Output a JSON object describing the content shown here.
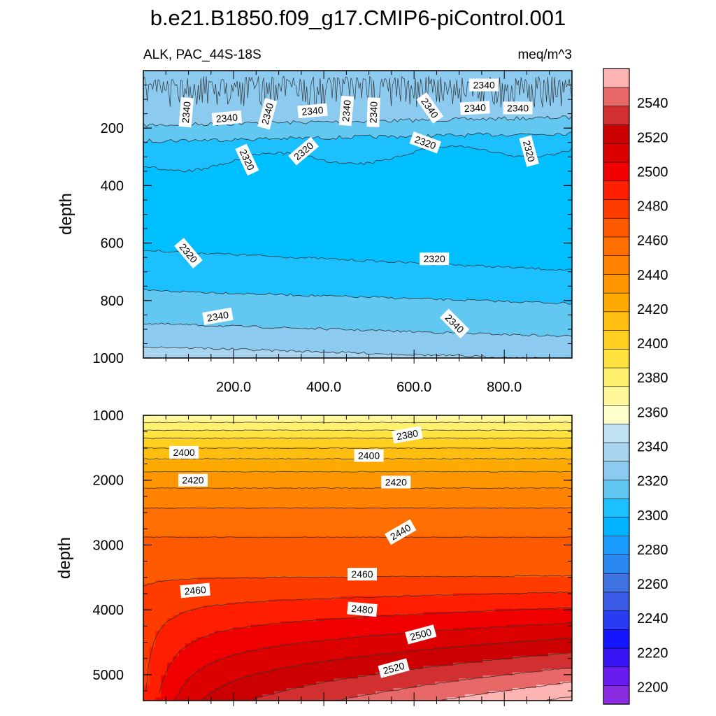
{
  "chart_data": {
    "type": "contour",
    "title": "b.e21.B1850.f09_g17.CMIP6-piControl.001",
    "variable_label": "ALK, PAC_44S-18S",
    "units_label": "meq/m^3",
    "ylabel": "depth",
    "xlim": [
      0,
      950
    ],
    "x_tick_labels": [
      "200.0",
      "400.0",
      "600.0",
      "800.0"
    ],
    "x_tick_values": [
      200,
      400,
      600,
      800
    ],
    "colorbar": {
      "min": 2190,
      "max": 2560,
      "interval": 10,
      "tick_labels": [
        "2200",
        "2220",
        "2240",
        "2260",
        "2280",
        "2300",
        "2320",
        "2340",
        "2360",
        "2380",
        "2400",
        "2420",
        "2440",
        "2460",
        "2480",
        "2500",
        "2520",
        "2540"
      ],
      "colors": [
        "#8a2be2",
        "#6a1bf0",
        "#3a14f5",
        "#1515ff",
        "#2a3cf2",
        "#3a5ae8",
        "#3f73e2",
        "#2a88f0",
        "#1a9cff",
        "#00b4ff",
        "#1cc0ff",
        "#62c8f2",
        "#8ccaf0",
        "#a8d4f0",
        "#c0e2f2",
        "#ffffcc",
        "#fff89a",
        "#fff06e",
        "#ffe23e",
        "#ffd020",
        "#ffbe10",
        "#ffaa00",
        "#ff9600",
        "#ff8200",
        "#ff6e00",
        "#ff5a00",
        "#ff3c00",
        "#ff1e00",
        "#f00000",
        "#dc0000",
        "#cc0000",
        "#d23030",
        "#e86868",
        "#ffb4b4"
      ]
    },
    "panels": [
      {
        "name": "upper",
        "ylim": [
          0,
          1000
        ],
        "y_tick_labels": [
          "200",
          "400",
          "600",
          "800",
          "1000"
        ],
        "y_tick_values": [
          200,
          400,
          600,
          800,
          1000
        ],
        "bands": [
          {
            "upper_depth": 0,
            "value_band": "2340-2350",
            "color": "#8ccaf0"
          },
          {
            "upper_depth": 190,
            "value_band": "2330-2340",
            "color": "#62c8f2"
          },
          {
            "upper_depth": 245,
            "value_band": "2320-2330",
            "color": "#1cc0ff"
          },
          {
            "upper_depth": 330,
            "value_band": "2310-2320",
            "color": "#00bfff"
          },
          {
            "upper_depth": 625,
            "value_band": "2320-2330",
            "color": "#1cc0ff"
          },
          {
            "upper_depth": 765,
            "value_band": "2330-2340",
            "color": "#62c8f2"
          },
          {
            "upper_depth": 880,
            "value_band": "2340-2350",
            "color": "#8ccaf0"
          },
          {
            "upper_depth": 960,
            "value_band": "2350-2360",
            "color": "#a8d4f0"
          }
        ],
        "contour_labels": [
          {
            "text": "2340",
            "x": 95,
            "depth": 145,
            "angle": -85
          },
          {
            "text": "2340",
            "x": 185,
            "depth": 165,
            "angle": -5
          },
          {
            "text": "2340",
            "x": 275,
            "depth": 150,
            "angle": -75
          },
          {
            "text": "2340",
            "x": 375,
            "depth": 140,
            "angle": -5
          },
          {
            "text": "2340",
            "x": 450,
            "depth": 140,
            "angle": -85
          },
          {
            "text": "2340",
            "x": 510,
            "depth": 145,
            "angle": -88
          },
          {
            "text": "2340",
            "x": 635,
            "depth": 130,
            "angle": 55
          },
          {
            "text": "2340",
            "x": 755,
            "depth": 50,
            "angle": 0
          },
          {
            "text": "2340",
            "x": 735,
            "depth": 130,
            "angle": -3
          },
          {
            "text": "2340",
            "x": 830,
            "depth": 130,
            "angle": 0
          },
          {
            "text": "2320",
            "x": 230,
            "depth": 310,
            "angle": 65
          },
          {
            "text": "2320",
            "x": 355,
            "depth": 280,
            "angle": -40
          },
          {
            "text": "2320",
            "x": 625,
            "depth": 250,
            "angle": 20
          },
          {
            "text": "2320",
            "x": 855,
            "depth": 280,
            "angle": 75
          },
          {
            "text": "2320",
            "x": 100,
            "depth": 635,
            "angle": 50
          },
          {
            "text": "2320",
            "x": 645,
            "depth": 655,
            "angle": 0
          },
          {
            "text": "2340",
            "x": 165,
            "depth": 855,
            "angle": -10
          },
          {
            "text": "2340",
            "x": 690,
            "depth": 880,
            "angle": 45
          }
        ]
      },
      {
        "name": "lower",
        "ylim": [
          1000,
          5400
        ],
        "y_tick_labels": [
          "1000",
          "2000",
          "3000",
          "4000",
          "5000"
        ],
        "y_tick_values": [
          1000,
          2000,
          3000,
          4000,
          5000
        ],
        "contour_levels": [
          2360,
          2370,
          2380,
          2390,
          2400,
          2410,
          2420,
          2430,
          2440,
          2450,
          2460,
          2470,
          2480,
          2490,
          2500,
          2510,
          2520,
          2530,
          2540
        ],
        "contour_labels": [
          {
            "text": "2380",
            "x": 585,
            "depth": 1300,
            "angle": -10
          },
          {
            "text": "2400",
            "x": 90,
            "depth": 1570,
            "angle": 0
          },
          {
            "text": "2400",
            "x": 500,
            "depth": 1620,
            "angle": 0
          },
          {
            "text": "2420",
            "x": 110,
            "depth": 2000,
            "angle": 0
          },
          {
            "text": "2420",
            "x": 560,
            "depth": 2030,
            "angle": 0
          },
          {
            "text": "2440",
            "x": 570,
            "depth": 2800,
            "angle": -30
          },
          {
            "text": "2460",
            "x": 115,
            "depth": 3700,
            "angle": -5
          },
          {
            "text": "2460",
            "x": 485,
            "depth": 3450,
            "angle": 0
          },
          {
            "text": "2480",
            "x": 485,
            "depth": 3990,
            "angle": 5
          },
          {
            "text": "2500",
            "x": 615,
            "depth": 4380,
            "angle": -15
          },
          {
            "text": "2520",
            "x": 555,
            "depth": 4900,
            "angle": -15
          }
        ]
      }
    ]
  }
}
